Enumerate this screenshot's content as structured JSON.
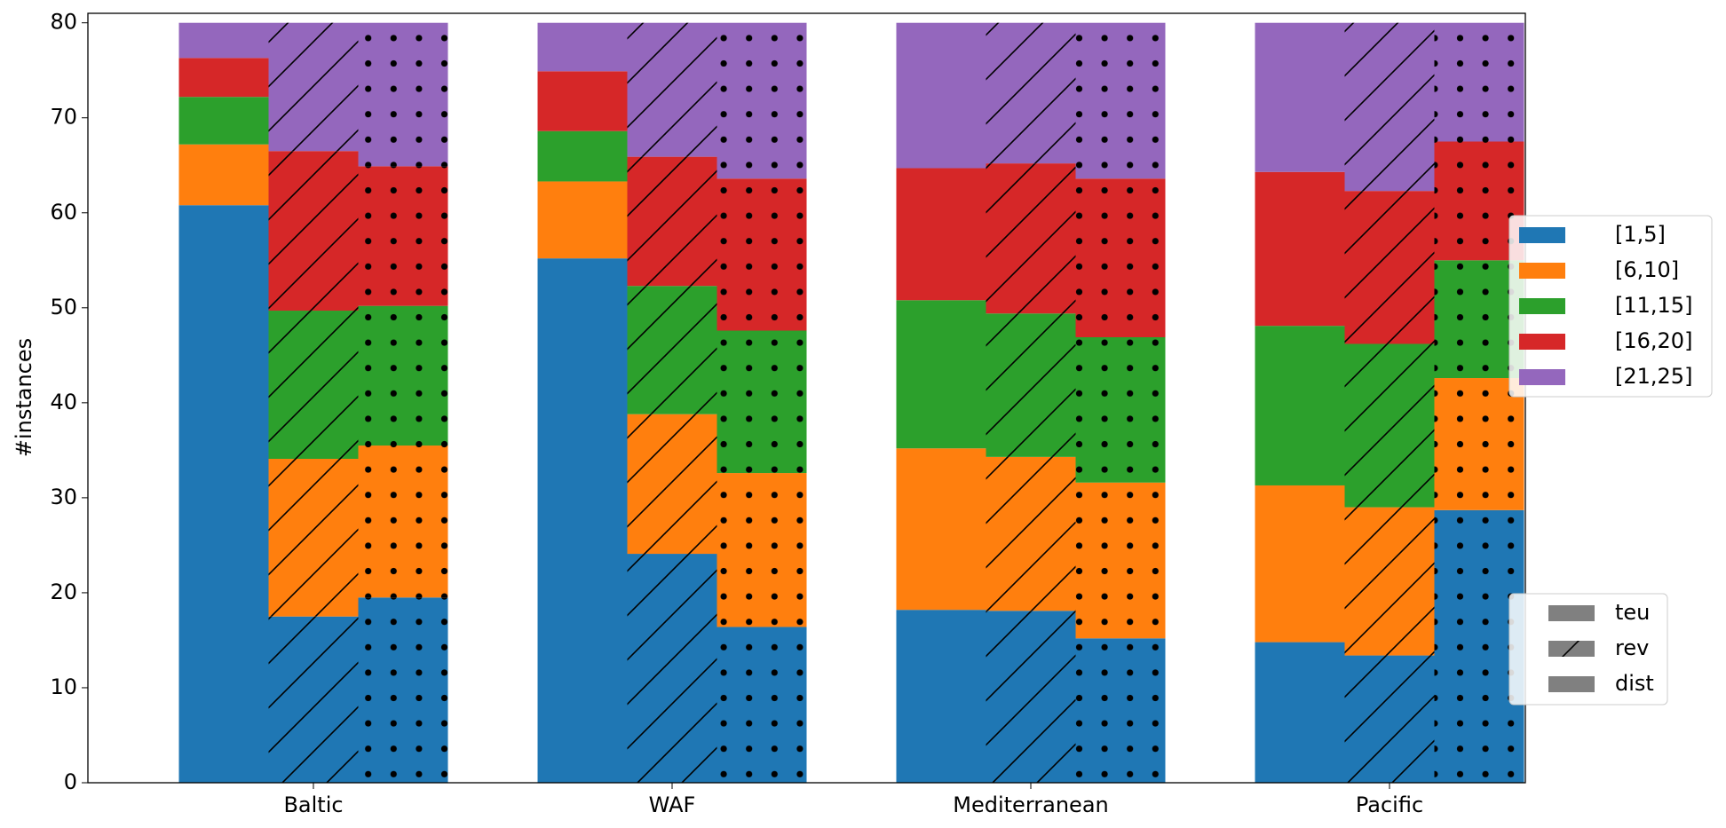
{
  "chart_data": {
    "type": "grouped_stacked_bar",
    "y_label": "#instances",
    "categories": [
      "Baltic",
      "WAF",
      "Mediterranean",
      "Pacific"
    ],
    "groups": [
      {
        "name": "teu",
        "pattern": "none"
      },
      {
        "name": "rev",
        "pattern": "hatch"
      },
      {
        "name": "dist",
        "pattern": "dots"
      }
    ],
    "series": [
      {
        "name": "[1,5]",
        "color": "#1f77b4",
        "values": [
          [
            60.8,
            17.5,
            19.5
          ],
          [
            55.2,
            24.1,
            16.4
          ],
          [
            18.2,
            18.1,
            15.2
          ],
          [
            14.8,
            13.4,
            28.7
          ]
        ]
      },
      {
        "name": "[6,10]",
        "color": "#ff7f0e",
        "values": [
          [
            6.4,
            16.6,
            16.0
          ],
          [
            8.1,
            14.7,
            16.2
          ],
          [
            17.0,
            16.2,
            16.4
          ],
          [
            16.5,
            15.6,
            13.9
          ]
        ]
      },
      {
        "name": "[11,15]",
        "color": "#2ca02c",
        "values": [
          [
            5.0,
            15.6,
            14.7
          ],
          [
            5.3,
            13.5,
            15.0
          ],
          [
            15.6,
            15.1,
            15.3
          ],
          [
            16.8,
            17.2,
            12.4
          ]
        ]
      },
      {
        "name": "[16,20]",
        "color": "#d62728",
        "values": [
          [
            4.1,
            16.8,
            14.7
          ],
          [
            6.3,
            13.6,
            16.0
          ],
          [
            13.9,
            15.8,
            16.7
          ],
          [
            16.2,
            16.1,
            12.5
          ]
        ]
      },
      {
        "name": "[21,25]",
        "color": "#9467bd",
        "values": [
          [
            3.7,
            13.5,
            15.1
          ],
          [
            5.1,
            14.1,
            16.4
          ],
          [
            15.3,
            14.8,
            16.4
          ],
          [
            15.7,
            17.7,
            12.5
          ]
        ]
      }
    ],
    "ylim": [
      0,
      81
    ],
    "yticks": [
      0,
      10,
      20,
      30,
      40,
      50,
      60,
      70,
      80
    ]
  }
}
